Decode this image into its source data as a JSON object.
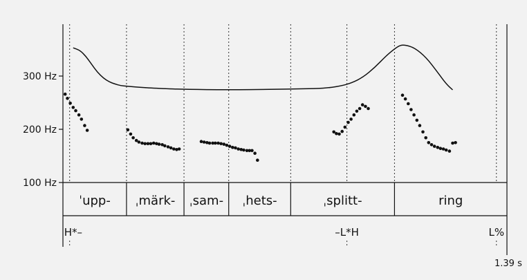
{
  "chart_data": {
    "type": "scatter",
    "title": "",
    "xlabel": "",
    "ylabel": "",
    "x_unit": "s",
    "x_range": [
      0,
      1.39
    ],
    "end_time_label": "1.39 s",
    "y_unit": "Hz",
    "y_range": [
      100,
      380
    ],
    "y_ticks": [
      {
        "value": 300,
        "label": "300 Hz"
      },
      {
        "value": 200,
        "label": "200 Hz"
      },
      {
        "value": 100,
        "label": "100 Hz"
      }
    ],
    "boundaries_s": [
      0.021,
      0.199,
      0.379,
      0.519,
      0.713,
      1.038
    ],
    "syllables": [
      {
        "text": "ˈupp-",
        "start": 0.0,
        "end": 0.199
      },
      {
        "text": "ˌmärk-",
        "start": 0.199,
        "end": 0.379
      },
      {
        "text": "ˌsam-",
        "start": 0.379,
        "end": 0.519
      },
      {
        "text": "ˌhets-",
        "start": 0.519,
        "end": 0.713
      },
      {
        "text": "ˌsplitt-",
        "start": 0.713,
        "end": 1.038
      },
      {
        "text": "ring",
        "start": 1.038,
        "end": 1.39
      }
    ],
    "tones": [
      {
        "text": "H*–",
        "time": 0.021,
        "anchor": "start"
      },
      {
        "text": "–L*H",
        "time": 0.889,
        "anchor": "middle"
      },
      {
        "text": "L%",
        "time": 1.357,
        "anchor": "middle"
      }
    ],
    "tone_alignment_lines_s": [
      0.021,
      0.889,
      1.038,
      1.357
    ],
    "series": [
      {
        "type": "scatter",
        "points": [
          [
            0.007,
            266
          ],
          [
            0.014,
            258
          ],
          [
            0.023,
            249
          ],
          [
            0.032,
            241
          ],
          [
            0.04,
            235
          ],
          [
            0.05,
            227
          ],
          [
            0.058,
            219
          ],
          [
            0.068,
            207
          ],
          [
            0.076,
            198
          ],
          [
            0.203,
            199
          ],
          [
            0.212,
            191
          ],
          [
            0.22,
            184
          ],
          [
            0.23,
            179
          ],
          [
            0.238,
            176
          ],
          [
            0.248,
            174
          ],
          [
            0.257,
            173
          ],
          [
            0.266,
            173
          ],
          [
            0.275,
            173
          ],
          [
            0.284,
            174
          ],
          [
            0.293,
            173
          ],
          [
            0.301,
            172
          ],
          [
            0.311,
            171
          ],
          [
            0.319,
            169
          ],
          [
            0.329,
            167
          ],
          [
            0.338,
            165
          ],
          [
            0.347,
            163
          ],
          [
            0.356,
            162
          ],
          [
            0.364,
            163
          ],
          [
            0.433,
            177
          ],
          [
            0.442,
            176
          ],
          [
            0.451,
            175
          ],
          [
            0.459,
            174
          ],
          [
            0.469,
            174
          ],
          [
            0.477,
            174
          ],
          [
            0.486,
            174
          ],
          [
            0.495,
            173
          ],
          [
            0.504,
            172
          ],
          [
            0.513,
            170
          ],
          [
            0.522,
            168
          ],
          [
            0.531,
            166
          ],
          [
            0.54,
            165
          ],
          [
            0.549,
            163
          ],
          [
            0.558,
            162
          ],
          [
            0.566,
            161
          ],
          [
            0.576,
            160
          ],
          [
            0.584,
            160
          ],
          [
            0.592,
            160
          ],
          [
            0.601,
            155
          ],
          [
            0.609,
            142
          ],
          [
            0.848,
            195
          ],
          [
            0.856,
            192
          ],
          [
            0.865,
            191
          ],
          [
            0.874,
            196
          ],
          [
            0.883,
            204
          ],
          [
            0.893,
            213
          ],
          [
            0.902,
            219
          ],
          [
            0.911,
            227
          ],
          [
            0.92,
            234
          ],
          [
            0.929,
            239
          ],
          [
            0.938,
            246
          ],
          [
            0.947,
            243
          ],
          [
            0.956,
            239
          ],
          [
            1.063,
            264
          ],
          [
            1.072,
            257
          ],
          [
            1.081,
            248
          ],
          [
            1.09,
            237
          ],
          [
            1.099,
            227
          ],
          [
            1.108,
            217
          ],
          [
            1.117,
            207
          ],
          [
            1.127,
            195
          ],
          [
            1.136,
            184
          ],
          [
            1.145,
            175
          ],
          [
            1.154,
            171
          ],
          [
            1.163,
            168
          ],
          [
            1.173,
            166
          ],
          [
            1.182,
            164
          ],
          [
            1.191,
            163
          ],
          [
            1.2,
            161
          ],
          [
            1.21,
            159
          ],
          [
            1.22,
            174
          ],
          [
            1.229,
            175
          ]
        ]
      },
      {
        "type": "line",
        "points": [
          [
            0.032,
            353
          ],
          [
            0.054,
            348
          ],
          [
            0.072,
            337
          ],
          [
            0.09,
            322
          ],
          [
            0.108,
            307
          ],
          [
            0.127,
            296
          ],
          [
            0.145,
            289
          ],
          [
            0.163,
            285
          ],
          [
            0.181,
            282
          ],
          [
            0.199,
            281
          ],
          [
            0.235,
            279
          ],
          [
            0.289,
            277
          ],
          [
            0.379,
            275
          ],
          [
            0.519,
            274
          ],
          [
            0.65,
            275
          ],
          [
            0.75,
            276
          ],
          [
            0.817,
            277
          ],
          [
            0.868,
            281
          ],
          [
            0.904,
            287
          ],
          [
            0.94,
            298
          ],
          [
            0.976,
            316
          ],
          [
            1.012,
            338
          ],
          [
            1.038,
            351
          ],
          [
            1.056,
            358
          ],
          [
            1.074,
            358
          ],
          [
            1.101,
            353
          ],
          [
            1.137,
            335
          ],
          [
            1.173,
            307
          ],
          [
            1.2,
            285
          ],
          [
            1.22,
            274
          ]
        ]
      }
    ]
  }
}
